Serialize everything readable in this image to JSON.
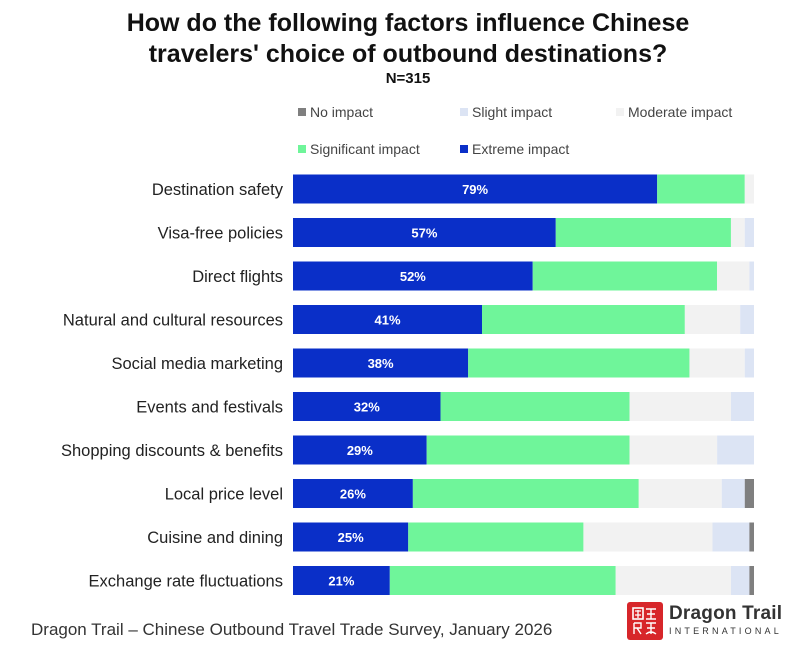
{
  "title_lines": [
    "How do the following factors influence Chinese",
    "travelers' choice of outbound destinations?"
  ],
  "subtitle": "N=315",
  "footer": "Dragon Trail – Chinese Outbound Travel Trade Survey, January 2026",
  "logo": {
    "name": "Dragon Trail",
    "tagline": "INTERNATIONAL",
    "mark_icon": "dragon-trail-logo-icon"
  },
  "colors": {
    "no_impact": "#7f7f7f",
    "slight_impact": "#dce4f4",
    "moderate_impact": "#f2f2f2",
    "significant_impact": "#6ff59a",
    "extreme_impact": "#0a2fc8",
    "label_text": "#ffffff"
  },
  "chart_data": {
    "type": "bar",
    "orientation": "horizontal",
    "stacked": true,
    "percent_scale": true,
    "xlim": [
      0,
      100
    ],
    "grid": false,
    "legend_position": "top",
    "categories": [
      "Destination safety",
      "Visa-free policies",
      "Direct flights",
      "Natural and cultural resources",
      "Social media marketing",
      "Events and festivals",
      "Shopping discounts & benefits",
      "Local price level",
      "Cuisine and dining",
      "Exchange rate fluctuations"
    ],
    "legend_order": [
      "No impact",
      "Slight impact",
      "Moderate impact",
      "Significant impact",
      "Extreme impact"
    ],
    "series": [
      {
        "name": "Extreme impact",
        "color": "#0a2fc8",
        "values": [
          79,
          57,
          52,
          41,
          38,
          32,
          29,
          26,
          25,
          21
        ],
        "labels": [
          "79%",
          "57%",
          "52%",
          "41%",
          "38%",
          "32%",
          "29%",
          "26%",
          "25%",
          "21%"
        ]
      },
      {
        "name": "Significant impact",
        "color": "#6ff59a",
        "values": [
          19,
          38,
          40,
          44,
          48,
          41,
          44,
          49,
          38,
          49
        ]
      },
      {
        "name": "Moderate impact",
        "color": "#f2f2f2",
        "values": [
          2,
          3,
          7,
          12,
          12,
          22,
          19,
          18,
          28,
          25
        ]
      },
      {
        "name": "Slight impact",
        "color": "#dce4f4",
        "values": [
          0,
          2,
          1,
          3,
          2,
          5,
          8,
          5,
          8,
          4
        ]
      },
      {
        "name": "No impact",
        "color": "#7f7f7f",
        "values": [
          0,
          0,
          0,
          0,
          0,
          0,
          0,
          2,
          1,
          1
        ]
      }
    ]
  }
}
